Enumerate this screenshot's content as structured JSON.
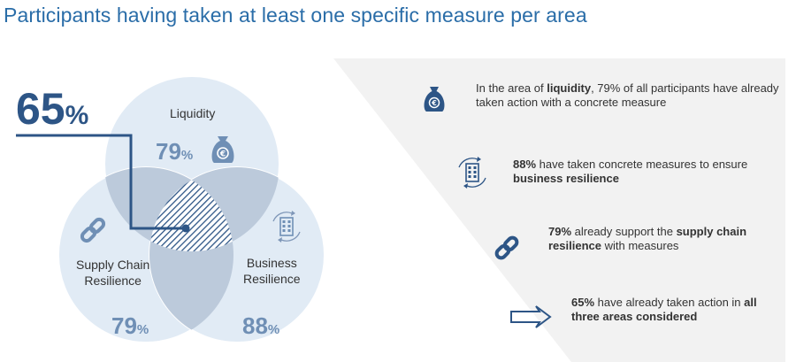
{
  "title": "Participants having taken at least one specific measure per area",
  "colors": {
    "title": "#2a6da8",
    "dark_blue": "#2d5586",
    "circle_fill": "#e1ebf5",
    "circle_stroke": "#ffffff",
    "overlap": "#bccadb",
    "pct_text": "#6f8fb5",
    "panel": "#f2f2f2"
  },
  "venn": {
    "center_value": "65",
    "center_unit": "%",
    "circles": [
      {
        "id": "liquidity",
        "label": "Liquidity",
        "value": "79",
        "unit": "%",
        "icon": "money-bag-euro-icon"
      },
      {
        "id": "supply_chain",
        "label": "Supply Chain\nResilience",
        "value": "79",
        "unit": "%",
        "icon": "chain-link-icon"
      },
      {
        "id": "business",
        "label": "Business\nResilience",
        "value": "88",
        "unit": "%",
        "icon": "building-cycle-icon"
      }
    ]
  },
  "facts": [
    {
      "icon": "money-bag-euro-icon",
      "pre": "In the area of ",
      "bold1": "liquidity",
      "mid": ", 79% of all participants have already taken action with a concrete measure",
      "bold2": "",
      "post": ""
    },
    {
      "icon": "building-cycle-icon",
      "pre": "",
      "bold1": "88%",
      "mid": " have taken concrete measures to ensure ",
      "bold2": "business resilience",
      "post": ""
    },
    {
      "icon": "chain-link-icon",
      "pre": "",
      "bold1": "79%",
      "mid": " already support the ",
      "bold2": "supply chain resilience",
      "post": " with measures"
    },
    {
      "icon": "double-arrow-right-icon",
      "pre": "",
      "bold1": "65%",
      "mid": " have already taken action in ",
      "bold2": "all three areas considered",
      "post": ""
    }
  ]
}
